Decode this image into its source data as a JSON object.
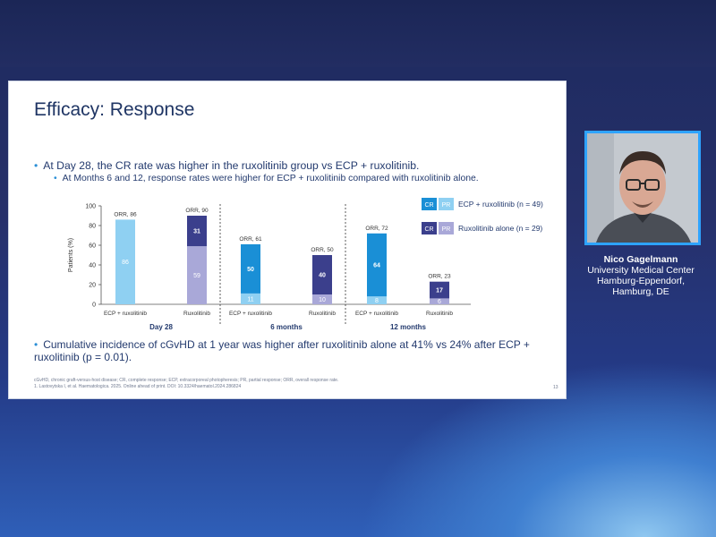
{
  "slide": {
    "title": "Efficacy: Response",
    "bullet1": "At Day 28, the CR rate was higher in the ruxolitinib group vs ECP + ruxolitinib.",
    "bullet2": "At Months 6 and 12, response rates were higher for ECP + ruxolitinib compared with ruxolitinib alone.",
    "bullet3": "Cumulative incidence of cGvHD at 1 year was higher after ruxolitinib alone at 41% vs 24% after ECP + ruxolitinib (p = 0.01).",
    "footnote1": "cGvHD, chronic graft-versus-host disease; CR, complete response; ECP, extracorporeal photopheresis; PR, partial response; ORR, overall response rate.",
    "footnote2": "1. Lastovytska I, et al. Haematologica. 2025. Online ahead of print. DOI: 10.3324/haematol.2024.286824",
    "page_number": "13"
  },
  "legend": {
    "cr": "CR",
    "pr": "PR",
    "ecp": "ECP + ruxolitinib (n = 49)",
    "rux": "Ruxolitinib alone (n = 29)"
  },
  "speaker": {
    "name": "Nico Gagelmann",
    "affiliation_line1": "University Medical Center",
    "affiliation_line2": "Hamburg-Eppendorf,",
    "affiliation_line3": "Hamburg, DE"
  },
  "colors": {
    "ecp_cr": "#1a8fd6",
    "ecp_pr": "#8fd0f2",
    "rux_cr": "#3b3f8c",
    "rux_pr": "#a9a8d8",
    "text": "#233a6e"
  },
  "chart_data": {
    "type": "bar",
    "stacked": true,
    "ylabel": "Patients (%)",
    "ylim": [
      0,
      100
    ],
    "yticks": [
      "0",
      "20",
      "40",
      "60",
      "80",
      "100"
    ],
    "groups": [
      "Day 28",
      "6 months",
      "12 months"
    ],
    "categories": [
      "ECP + ruxolitinib",
      "Ruxolitinib",
      "ECP + ruxolitinib",
      "Ruxolitinib",
      "ECP + ruxolitinib",
      "Ruxolitinib"
    ],
    "arm": [
      "ecp",
      "rux",
      "ecp",
      "rux",
      "ecp",
      "rux"
    ],
    "series": [
      {
        "name": "PR",
        "values": [
          86,
          59,
          11,
          10,
          8,
          6
        ],
        "labels": [
          "86",
          "59",
          "11",
          "10",
          "8",
          "6"
        ]
      },
      {
        "name": "CR",
        "values": [
          0,
          31,
          50,
          40,
          64,
          17
        ],
        "labels": [
          "",
          "31",
          "50",
          "40",
          "64",
          "17"
        ]
      }
    ],
    "orr_labels": [
      "ORR, 86",
      "ORR, 90",
      "ORR, 61",
      "ORR, 50",
      "ORR, 72",
      "ORR, 23"
    ],
    "grid": false,
    "legend_position": "top-right"
  }
}
